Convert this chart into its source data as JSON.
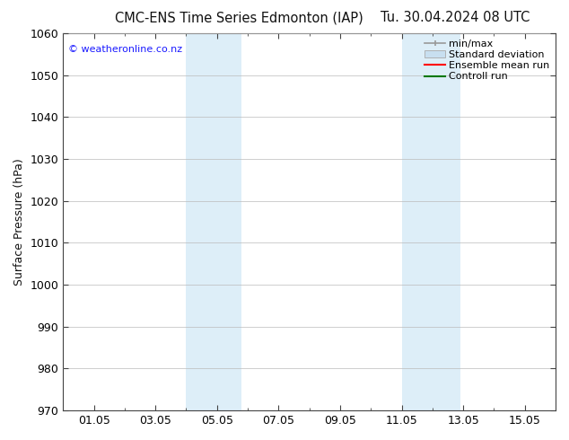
{
  "title_left": "CMC-ENS Time Series Edmonton (IAP)",
  "title_right": "Tu. 30.04.2024 08 UTC",
  "ylabel": "Surface Pressure (hPa)",
  "ylim": [
    970,
    1060
  ],
  "yticks": [
    970,
    980,
    990,
    1000,
    1010,
    1020,
    1030,
    1040,
    1050,
    1060
  ],
  "xtick_labels": [
    "01.05",
    "03.05",
    "05.05",
    "07.05",
    "09.05",
    "11.05",
    "13.05",
    "15.05"
  ],
  "xtick_positions": [
    1,
    3,
    5,
    7,
    9,
    11,
    13,
    15
  ],
  "xlim": [
    0,
    16
  ],
  "shaded_regions": [
    {
      "x_start": 4.0,
      "x_end": 5.8,
      "color": "#ddeef8"
    },
    {
      "x_start": 11.0,
      "x_end": 12.9,
      "color": "#ddeef8"
    }
  ],
  "watermark": "© weatheronline.co.nz",
  "watermark_color": "#1a1aff",
  "background_color": "#ffffff",
  "grid_color": "#bbbbbb",
  "spine_color": "#444444",
  "font_color": "#111111",
  "title_fontsize": 10.5,
  "ylabel_fontsize": 9,
  "tick_fontsize": 9,
  "legend_fontsize": 8,
  "legend_items": [
    {
      "label": "min/max",
      "color": "#999999"
    },
    {
      "label": "Standard deviation",
      "color": "#c8dff0"
    },
    {
      "label": "Ensemble mean run",
      "color": "#ff0000"
    },
    {
      "label": "Controll run",
      "color": "#007700"
    }
  ]
}
